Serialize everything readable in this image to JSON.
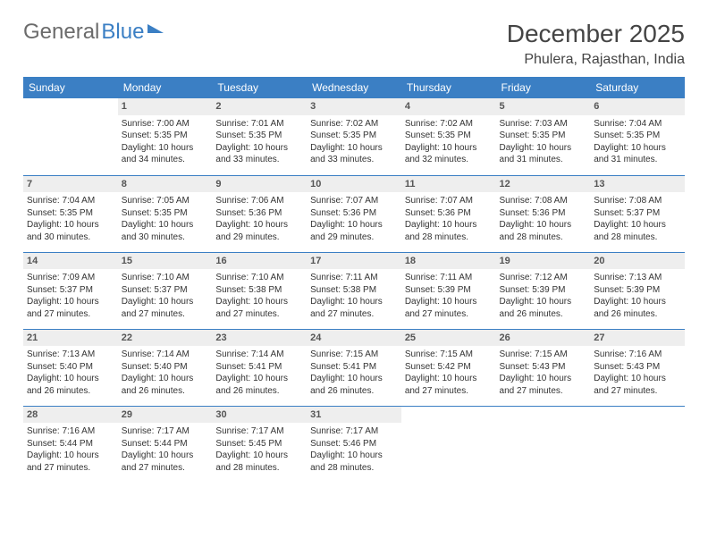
{
  "logo": {
    "text_gray": "General",
    "text_blue": "Blue"
  },
  "month_title": "December 2025",
  "location": "Phulera, Rajasthan, India",
  "colors": {
    "header_bg": "#3b7fc4",
    "header_fg": "#ffffff",
    "daynum_bg": "#eeeeee",
    "row_border": "#3b7fc4",
    "logo_gray": "#6b6b6b",
    "logo_blue": "#3b7fc4"
  },
  "weekdays": [
    "Sunday",
    "Monday",
    "Tuesday",
    "Wednesday",
    "Thursday",
    "Friday",
    "Saturday"
  ],
  "weeks": [
    [
      {
        "day": "",
        "sunrise": "",
        "sunset": "",
        "daylight": ""
      },
      {
        "day": "1",
        "sunrise": "Sunrise: 7:00 AM",
        "sunset": "Sunset: 5:35 PM",
        "daylight": "Daylight: 10 hours and 34 minutes."
      },
      {
        "day": "2",
        "sunrise": "Sunrise: 7:01 AM",
        "sunset": "Sunset: 5:35 PM",
        "daylight": "Daylight: 10 hours and 33 minutes."
      },
      {
        "day": "3",
        "sunrise": "Sunrise: 7:02 AM",
        "sunset": "Sunset: 5:35 PM",
        "daylight": "Daylight: 10 hours and 33 minutes."
      },
      {
        "day": "4",
        "sunrise": "Sunrise: 7:02 AM",
        "sunset": "Sunset: 5:35 PM",
        "daylight": "Daylight: 10 hours and 32 minutes."
      },
      {
        "day": "5",
        "sunrise": "Sunrise: 7:03 AM",
        "sunset": "Sunset: 5:35 PM",
        "daylight": "Daylight: 10 hours and 31 minutes."
      },
      {
        "day": "6",
        "sunrise": "Sunrise: 7:04 AM",
        "sunset": "Sunset: 5:35 PM",
        "daylight": "Daylight: 10 hours and 31 minutes."
      }
    ],
    [
      {
        "day": "7",
        "sunrise": "Sunrise: 7:04 AM",
        "sunset": "Sunset: 5:35 PM",
        "daylight": "Daylight: 10 hours and 30 minutes."
      },
      {
        "day": "8",
        "sunrise": "Sunrise: 7:05 AM",
        "sunset": "Sunset: 5:35 PM",
        "daylight": "Daylight: 10 hours and 30 minutes."
      },
      {
        "day": "9",
        "sunrise": "Sunrise: 7:06 AM",
        "sunset": "Sunset: 5:36 PM",
        "daylight": "Daylight: 10 hours and 29 minutes."
      },
      {
        "day": "10",
        "sunrise": "Sunrise: 7:07 AM",
        "sunset": "Sunset: 5:36 PM",
        "daylight": "Daylight: 10 hours and 29 minutes."
      },
      {
        "day": "11",
        "sunrise": "Sunrise: 7:07 AM",
        "sunset": "Sunset: 5:36 PM",
        "daylight": "Daylight: 10 hours and 28 minutes."
      },
      {
        "day": "12",
        "sunrise": "Sunrise: 7:08 AM",
        "sunset": "Sunset: 5:36 PM",
        "daylight": "Daylight: 10 hours and 28 minutes."
      },
      {
        "day": "13",
        "sunrise": "Sunrise: 7:08 AM",
        "sunset": "Sunset: 5:37 PM",
        "daylight": "Daylight: 10 hours and 28 minutes."
      }
    ],
    [
      {
        "day": "14",
        "sunrise": "Sunrise: 7:09 AM",
        "sunset": "Sunset: 5:37 PM",
        "daylight": "Daylight: 10 hours and 27 minutes."
      },
      {
        "day": "15",
        "sunrise": "Sunrise: 7:10 AM",
        "sunset": "Sunset: 5:37 PM",
        "daylight": "Daylight: 10 hours and 27 minutes."
      },
      {
        "day": "16",
        "sunrise": "Sunrise: 7:10 AM",
        "sunset": "Sunset: 5:38 PM",
        "daylight": "Daylight: 10 hours and 27 minutes."
      },
      {
        "day": "17",
        "sunrise": "Sunrise: 7:11 AM",
        "sunset": "Sunset: 5:38 PM",
        "daylight": "Daylight: 10 hours and 27 minutes."
      },
      {
        "day": "18",
        "sunrise": "Sunrise: 7:11 AM",
        "sunset": "Sunset: 5:39 PM",
        "daylight": "Daylight: 10 hours and 27 minutes."
      },
      {
        "day": "19",
        "sunrise": "Sunrise: 7:12 AM",
        "sunset": "Sunset: 5:39 PM",
        "daylight": "Daylight: 10 hours and 26 minutes."
      },
      {
        "day": "20",
        "sunrise": "Sunrise: 7:13 AM",
        "sunset": "Sunset: 5:39 PM",
        "daylight": "Daylight: 10 hours and 26 minutes."
      }
    ],
    [
      {
        "day": "21",
        "sunrise": "Sunrise: 7:13 AM",
        "sunset": "Sunset: 5:40 PM",
        "daylight": "Daylight: 10 hours and 26 minutes."
      },
      {
        "day": "22",
        "sunrise": "Sunrise: 7:14 AM",
        "sunset": "Sunset: 5:40 PM",
        "daylight": "Daylight: 10 hours and 26 minutes."
      },
      {
        "day": "23",
        "sunrise": "Sunrise: 7:14 AM",
        "sunset": "Sunset: 5:41 PM",
        "daylight": "Daylight: 10 hours and 26 minutes."
      },
      {
        "day": "24",
        "sunrise": "Sunrise: 7:15 AM",
        "sunset": "Sunset: 5:41 PM",
        "daylight": "Daylight: 10 hours and 26 minutes."
      },
      {
        "day": "25",
        "sunrise": "Sunrise: 7:15 AM",
        "sunset": "Sunset: 5:42 PM",
        "daylight": "Daylight: 10 hours and 27 minutes."
      },
      {
        "day": "26",
        "sunrise": "Sunrise: 7:15 AM",
        "sunset": "Sunset: 5:43 PM",
        "daylight": "Daylight: 10 hours and 27 minutes."
      },
      {
        "day": "27",
        "sunrise": "Sunrise: 7:16 AM",
        "sunset": "Sunset: 5:43 PM",
        "daylight": "Daylight: 10 hours and 27 minutes."
      }
    ],
    [
      {
        "day": "28",
        "sunrise": "Sunrise: 7:16 AM",
        "sunset": "Sunset: 5:44 PM",
        "daylight": "Daylight: 10 hours and 27 minutes."
      },
      {
        "day": "29",
        "sunrise": "Sunrise: 7:17 AM",
        "sunset": "Sunset: 5:44 PM",
        "daylight": "Daylight: 10 hours and 27 minutes."
      },
      {
        "day": "30",
        "sunrise": "Sunrise: 7:17 AM",
        "sunset": "Sunset: 5:45 PM",
        "daylight": "Daylight: 10 hours and 28 minutes."
      },
      {
        "day": "31",
        "sunrise": "Sunrise: 7:17 AM",
        "sunset": "Sunset: 5:46 PM",
        "daylight": "Daylight: 10 hours and 28 minutes."
      },
      {
        "day": "",
        "sunrise": "",
        "sunset": "",
        "daylight": ""
      },
      {
        "day": "",
        "sunrise": "",
        "sunset": "",
        "daylight": ""
      },
      {
        "day": "",
        "sunrise": "",
        "sunset": "",
        "daylight": ""
      }
    ]
  ]
}
